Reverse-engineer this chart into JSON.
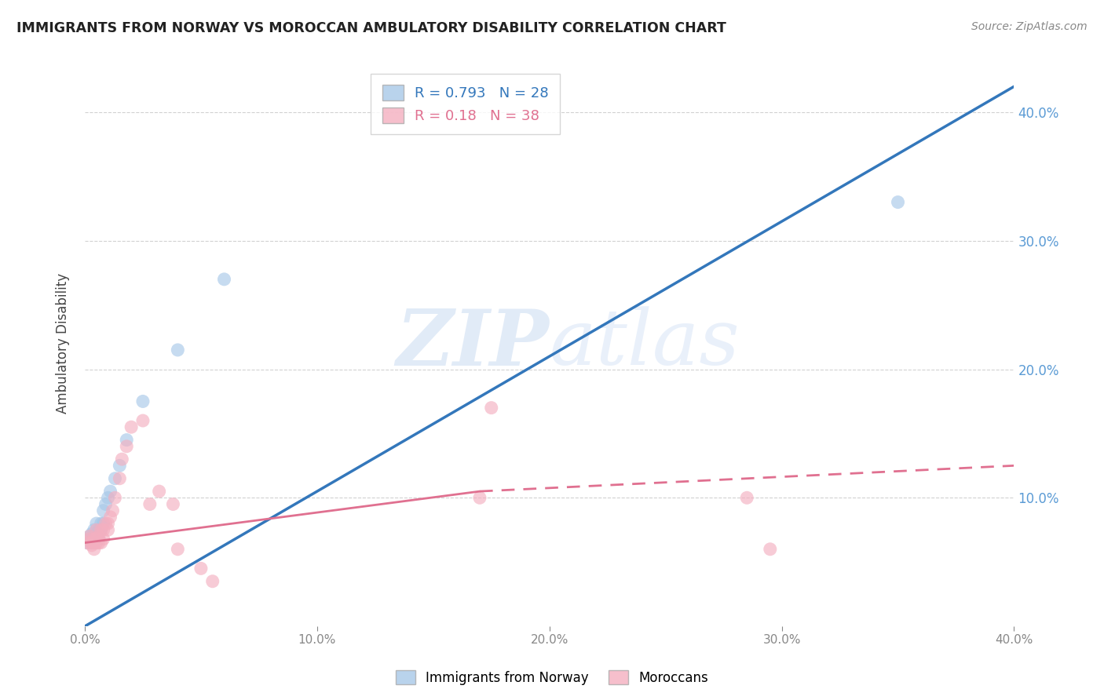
{
  "title": "IMMIGRANTS FROM NORWAY VS MOROCCAN AMBULATORY DISABILITY CORRELATION CHART",
  "source": "Source: ZipAtlas.com",
  "ylabel": "Ambulatory Disability",
  "blue_color": "#a8c8e8",
  "pink_color": "#f4afc0",
  "blue_line_color": "#3377bb",
  "pink_line_color": "#e07090",
  "pink_line_dashed_color": "#e07090",
  "R_blue": 0.793,
  "N_blue": 28,
  "R_pink": 0.18,
  "N_pink": 38,
  "norway_x": [
    0.001,
    0.002,
    0.002,
    0.003,
    0.003,
    0.003,
    0.004,
    0.004,
    0.004,
    0.005,
    0.005,
    0.005,
    0.006,
    0.006,
    0.007,
    0.007,
    0.008,
    0.008,
    0.009,
    0.01,
    0.011,
    0.013,
    0.015,
    0.018,
    0.025,
    0.04,
    0.06,
    0.35
  ],
  "norway_y": [
    0.065,
    0.068,
    0.07,
    0.065,
    0.068,
    0.072,
    0.065,
    0.07,
    0.075,
    0.07,
    0.073,
    0.08,
    0.068,
    0.075,
    0.075,
    0.08,
    0.08,
    0.09,
    0.095,
    0.1,
    0.105,
    0.115,
    0.125,
    0.145,
    0.175,
    0.215,
    0.27,
    0.33
  ],
  "moroccan_x": [
    0.001,
    0.002,
    0.002,
    0.003,
    0.003,
    0.004,
    0.004,
    0.004,
    0.005,
    0.005,
    0.005,
    0.006,
    0.006,
    0.007,
    0.007,
    0.008,
    0.008,
    0.009,
    0.01,
    0.01,
    0.011,
    0.012,
    0.013,
    0.015,
    0.016,
    0.018,
    0.02,
    0.025,
    0.028,
    0.032,
    0.038,
    0.04,
    0.05,
    0.055,
    0.17,
    0.175,
    0.285,
    0.295
  ],
  "moroccan_y": [
    0.065,
    0.068,
    0.07,
    0.063,
    0.065,
    0.06,
    0.065,
    0.068,
    0.065,
    0.068,
    0.075,
    0.065,
    0.07,
    0.065,
    0.075,
    0.068,
    0.075,
    0.08,
    0.075,
    0.08,
    0.085,
    0.09,
    0.1,
    0.115,
    0.13,
    0.14,
    0.155,
    0.16,
    0.095,
    0.105,
    0.095,
    0.06,
    0.045,
    0.035,
    0.1,
    0.17,
    0.1,
    0.06
  ],
  "watermark_zip": "ZIP",
  "watermark_atlas": "atlas",
  "background_color": "#ffffff",
  "grid_color": "#cccccc",
  "right_tick_color": "#5b9bd5",
  "xlim": [
    0.0,
    0.4
  ],
  "ylim": [
    0.0,
    0.44
  ],
  "xticks": [
    0.0,
    0.1,
    0.2,
    0.3,
    0.4
  ],
  "yticks_right": [
    0.1,
    0.2,
    0.3,
    0.4
  ],
  "blue_line_x0": 0.0,
  "blue_line_y0": 0.0,
  "blue_line_x1": 0.4,
  "blue_line_y1": 0.42,
  "pink_line_x0": 0.0,
  "pink_line_y0": 0.065,
  "pink_line_solid_x1": 0.17,
  "pink_line_y1": 0.105,
  "pink_line_x2": 0.4,
  "pink_line_y2": 0.125
}
